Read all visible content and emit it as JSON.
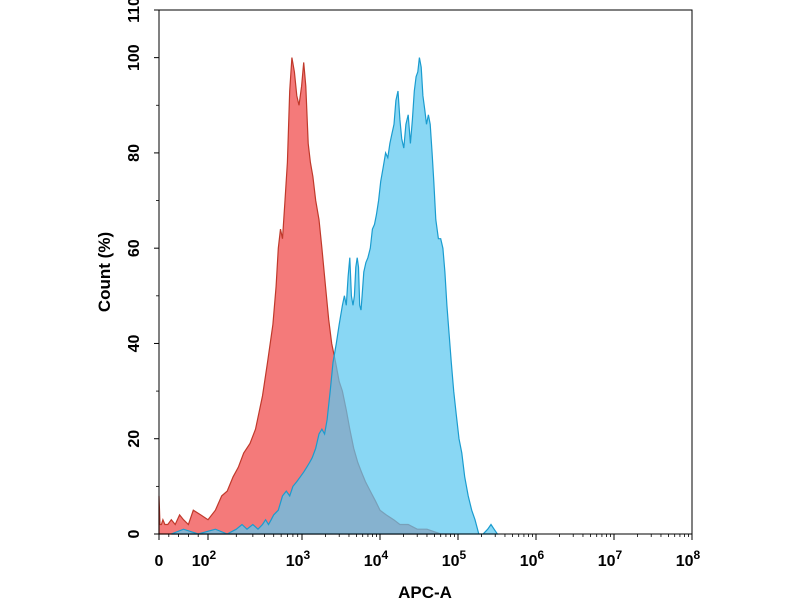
{
  "chart_data": {
    "type": "area",
    "title": "",
    "xlabel": "APC-A",
    "ylabel": "Count (%)",
    "xscale": "biexponential (linear near 0, log10 above)",
    "xlim": [
      0,
      100000000
    ],
    "ylim": [
      0,
      110
    ],
    "grid": false,
    "legend": "none",
    "x_ticks": [
      {
        "value": 0,
        "base": "0",
        "exp": ""
      },
      {
        "value": 100,
        "base": "10",
        "exp": "2"
      },
      {
        "value": 1000,
        "base": "10",
        "exp": "3"
      },
      {
        "value": 10000,
        "base": "10",
        "exp": "4"
      },
      {
        "value": 100000,
        "base": "10",
        "exp": "5"
      },
      {
        "value": 1000000,
        "base": "10",
        "exp": "6"
      },
      {
        "value": 10000000,
        "base": "10",
        "exp": "7"
      },
      {
        "value": 100000000,
        "base": "10",
        "exp": "8"
      }
    ],
    "y_ticks": [
      0,
      20,
      40,
      60,
      80,
      100,
      110
    ],
    "series": [
      {
        "fill": "#f47a7a",
        "stroke": "#c0392b",
        "points": [
          [
            0,
            8
          ],
          [
            2,
            2
          ],
          [
            5,
            2
          ],
          [
            8,
            3
          ],
          [
            12,
            2
          ],
          [
            18,
            2
          ],
          [
            25,
            3
          ],
          [
            33,
            2
          ],
          [
            42,
            4
          ],
          [
            50,
            3
          ],
          [
            60,
            2
          ],
          [
            70,
            5
          ],
          [
            85,
            4
          ],
          [
            100,
            3
          ],
          [
            120,
            5
          ],
          [
            140,
            8
          ],
          [
            160,
            9
          ],
          [
            185,
            12
          ],
          [
            210,
            14
          ],
          [
            240,
            17
          ],
          [
            280,
            19
          ],
          [
            320,
            22
          ],
          [
            380,
            29
          ],
          [
            430,
            36
          ],
          [
            490,
            44
          ],
          [
            530,
            52
          ],
          [
            560,
            60
          ],
          [
            590,
            64
          ],
          [
            620,
            62
          ],
          [
            660,
            70
          ],
          [
            700,
            78
          ],
          [
            740,
            93
          ],
          [
            780,
            100
          ],
          [
            830,
            97
          ],
          [
            880,
            92
          ],
          [
            930,
            90
          ],
          [
            990,
            94
          ],
          [
            1050,
            99
          ],
          [
            1120,
            94
          ],
          [
            1200,
            82
          ],
          [
            1280,
            78
          ],
          [
            1380,
            75
          ],
          [
            1500,
            70
          ],
          [
            1650,
            66
          ],
          [
            1800,
            60
          ],
          [
            2000,
            52
          ],
          [
            2200,
            45
          ],
          [
            2400,
            40
          ],
          [
            2700,
            36
          ],
          [
            3000,
            32
          ],
          [
            3300,
            30
          ],
          [
            3700,
            26
          ],
          [
            4100,
            22
          ],
          [
            4600,
            18
          ],
          [
            5200,
            15
          ],
          [
            5800,
            13
          ],
          [
            6500,
            11
          ],
          [
            7500,
            9
          ],
          [
            8700,
            7
          ],
          [
            10000,
            5
          ],
          [
            12000,
            4
          ],
          [
            15000,
            3
          ],
          [
            18000,
            2
          ],
          [
            23000,
            2
          ],
          [
            30000,
            1
          ],
          [
            40000,
            1
          ],
          [
            60000,
            0
          ],
          [
            90000,
            0
          ]
        ]
      },
      {
        "fill": "#5bc8f0",
        "stroke": "#1a9ccf",
        "points": [
          [
            25,
            0
          ],
          [
            50,
            1
          ],
          [
            80,
            0
          ],
          [
            120,
            1
          ],
          [
            160,
            0
          ],
          [
            200,
            1
          ],
          [
            230,
            2
          ],
          [
            260,
            1
          ],
          [
            300,
            2
          ],
          [
            340,
            1
          ],
          [
            380,
            2
          ],
          [
            410,
            3
          ],
          [
            440,
            2
          ],
          [
            470,
            3
          ],
          [
            500,
            4
          ],
          [
            560,
            5
          ],
          [
            620,
            8
          ],
          [
            680,
            9
          ],
          [
            740,
            8
          ],
          [
            800,
            10
          ],
          [
            880,
            11
          ],
          [
            960,
            12
          ],
          [
            1050,
            13
          ],
          [
            1150,
            14
          ],
          [
            1250,
            15
          ],
          [
            1350,
            16
          ],
          [
            1500,
            18
          ],
          [
            1650,
            21
          ],
          [
            1800,
            22
          ],
          [
            1950,
            21
          ],
          [
            2100,
            24
          ],
          [
            2300,
            30
          ],
          [
            2500,
            36
          ],
          [
            2750,
            40
          ],
          [
            3000,
            44
          ],
          [
            3300,
            48
          ],
          [
            3500,
            50
          ],
          [
            3700,
            48
          ],
          [
            3900,
            54
          ],
          [
            4100,
            58
          ],
          [
            4300,
            50
          ],
          [
            4500,
            48
          ],
          [
            4700,
            50
          ],
          [
            4900,
            56
          ],
          [
            5100,
            58
          ],
          [
            5300,
            56
          ],
          [
            5500,
            48
          ],
          [
            5700,
            47
          ],
          [
            5900,
            50
          ],
          [
            6200,
            55
          ],
          [
            6600,
            57
          ],
          [
            7000,
            58
          ],
          [
            7500,
            60
          ],
          [
            8000,
            64
          ],
          [
            8500,
            65
          ],
          [
            9000,
            67
          ],
          [
            9600,
            70
          ],
          [
            10200,
            74
          ],
          [
            11000,
            77
          ],
          [
            11800,
            80
          ],
          [
            12600,
            79
          ],
          [
            13400,
            82
          ],
          [
            14200,
            84
          ],
          [
            15100,
            86
          ],
          [
            16000,
            91
          ],
          [
            17000,
            93
          ],
          [
            18000,
            87
          ],
          [
            19000,
            83
          ],
          [
            20200,
            81
          ],
          [
            21500,
            86
          ],
          [
            23000,
            88
          ],
          [
            24500,
            82
          ],
          [
            26000,
            87
          ],
          [
            27500,
            93
          ],
          [
            29000,
            96
          ],
          [
            30500,
            97
          ],
          [
            32000,
            100
          ],
          [
            33700,
            98
          ],
          [
            35500,
            92
          ],
          [
            37500,
            89
          ],
          [
            39500,
            86
          ],
          [
            41700,
            88
          ],
          [
            44000,
            86
          ],
          [
            46500,
            80
          ],
          [
            49000,
            74
          ],
          [
            52000,
            66
          ],
          [
            56000,
            62
          ],
          [
            60000,
            62
          ],
          [
            64000,
            60
          ],
          [
            68000,
            55
          ],
          [
            72000,
            48
          ],
          [
            77000,
            42
          ],
          [
            82000,
            36
          ],
          [
            88000,
            30
          ],
          [
            95000,
            25
          ],
          [
            103000,
            20
          ],
          [
            112000,
            17
          ],
          [
            122000,
            12
          ],
          [
            135000,
            8
          ],
          [
            150000,
            5
          ],
          [
            165000,
            3
          ],
          [
            185000,
            0
          ],
          [
            210000,
            0
          ],
          [
            240000,
            1
          ],
          [
            265000,
            2
          ],
          [
            290000,
            1
          ],
          [
            320000,
            0
          ]
        ]
      }
    ]
  }
}
